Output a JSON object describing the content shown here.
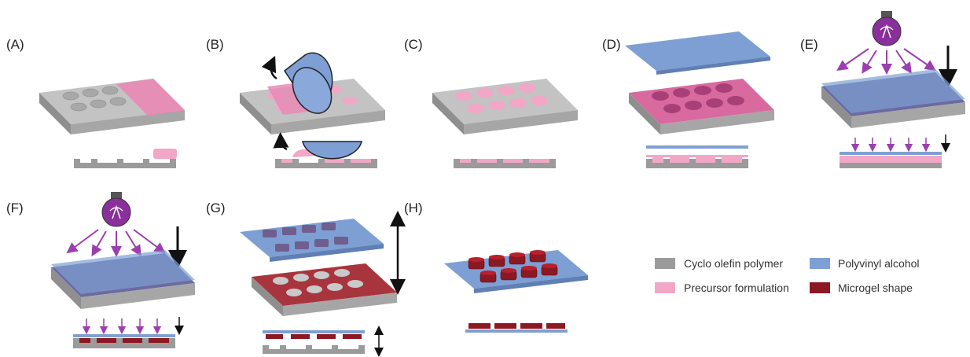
{
  "panels": [
    {
      "id": "A",
      "label": "(A)",
      "step": "precursor-applied"
    },
    {
      "id": "B",
      "label": "(B)",
      "step": "roller-fill"
    },
    {
      "id": "C",
      "label": "(C)",
      "step": "filled-wells"
    },
    {
      "id": "D",
      "label": "(D)",
      "step": "pva-film-placed"
    },
    {
      "id": "E",
      "label": "(E)",
      "step": "uv-curing"
    },
    {
      "id": "F",
      "label": "(F)",
      "step": "uv-curing-continued"
    },
    {
      "id": "G",
      "label": "(G)",
      "step": "peel-off"
    },
    {
      "id": "H",
      "label": "(H)",
      "step": "microgels-on-pva"
    }
  ],
  "legend": [
    {
      "label": "Cyclo olefin polymer",
      "color": "#9b9b9b"
    },
    {
      "label": "Polyvinyl alcohol",
      "color": "#7e9fd3"
    },
    {
      "label": "Precursor formulation",
      "color": "#f2a7c7"
    },
    {
      "label": "Microgel shape",
      "color": "#8b1822"
    }
  ],
  "colors": {
    "cop_top": "#c3c3c3",
    "cop_front": "#9e9e9e",
    "cop_side": "#b0b0b0",
    "well": "#a8a8a8",
    "pink": "#f2a7c7",
    "pink_top": "#e98ab6",
    "pva": "#7e9fd3",
    "pva_dark": "#5f7fb5",
    "microgel": "#8b1822",
    "uv": "#9b3fae",
    "bulb": "#8a2f9b"
  },
  "icons": [
    "light-bulb-icon",
    "roller-icon",
    "arrow-icon"
  ]
}
